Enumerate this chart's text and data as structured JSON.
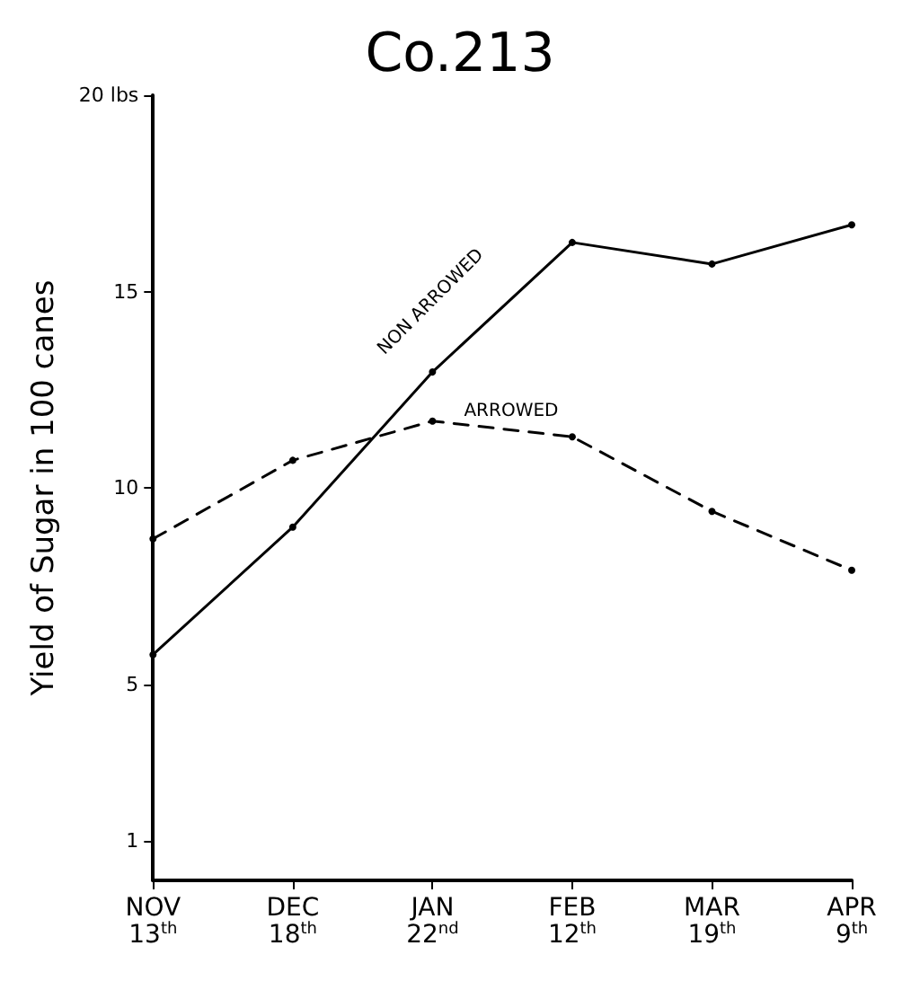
{
  "chart_data": {
    "type": "line",
    "title": "Co.213",
    "ylabel": "Yield of Sugar in 100 canes",
    "categories": [
      "NOV\n13$^{th}$",
      "DEC\n18$^{th}$",
      "JAN\n22$^{nd}$",
      "FEB\n12$^{th}$",
      "MAR\n19$^{th}$",
      "APR\n9$^{th}$"
    ],
    "series": [
      {
        "name": "NON ARROWED",
        "color": "#000000",
        "line_style": "solid",
        "values": [
          5.75,
          9.0,
          12.95,
          16.25,
          15.7,
          16.7
        ]
      },
      {
        "name": "ARROWED",
        "color": "#000000",
        "line_style": "dashed",
        "values": [
          8.7,
          10.7,
          11.7,
          11.3,
          9.4,
          7.9
        ]
      }
    ],
    "ylim": [
      0,
      20
    ],
    "yticks": [
      1,
      5,
      10,
      15,
      {
        "value": 20,
        "label": "20 lbs"
      }
    ],
    "marker": "circle",
    "grid": false,
    "legend": false
  }
}
